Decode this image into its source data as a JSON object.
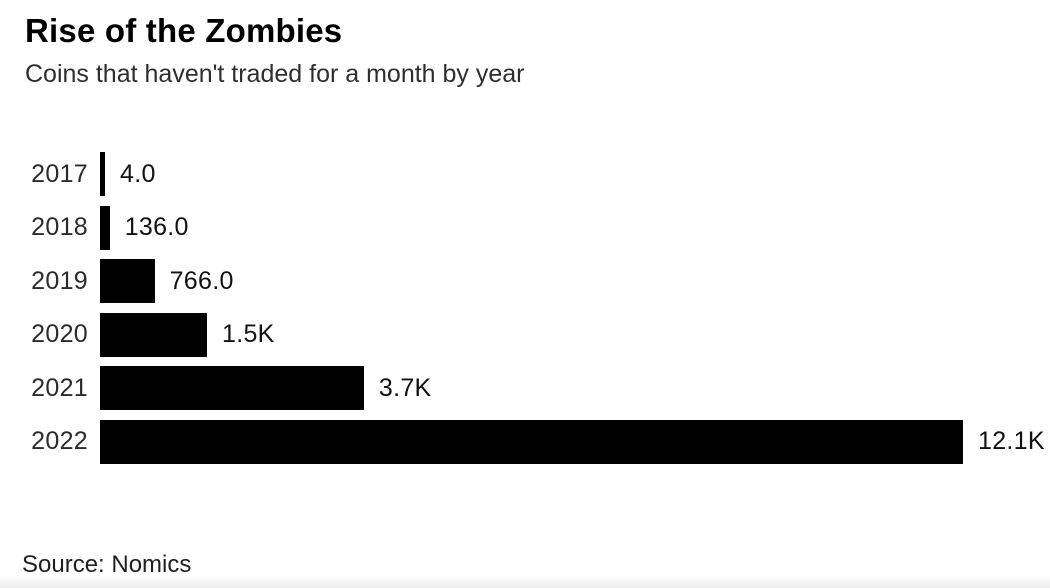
{
  "header": {
    "title": "Rise of the Zombies",
    "subtitle": "Coins that haven't traded for a month by year"
  },
  "source": {
    "label": "Source: Nomics"
  },
  "colors": {
    "bar": "#000000",
    "title": "#000000",
    "subtitle": "#2e2e2e",
    "label": "#2b2b2b",
    "value": "#111111"
  },
  "chart_data": {
    "type": "bar",
    "orientation": "horizontal",
    "title": "Rise of the Zombies",
    "subtitle": "Coins that haven't traded for a month by year",
    "categories": [
      "2017",
      "2018",
      "2019",
      "2020",
      "2021",
      "2022"
    ],
    "values": [
      4,
      136,
      766,
      1500,
      3700,
      12100
    ],
    "value_labels": [
      "4.0",
      "136.0",
      "766.0",
      "1.5K",
      "3.7K",
      "12.1K"
    ],
    "xlabel": "",
    "ylabel": "",
    "xlim": [
      0,
      12100
    ],
    "grid": false,
    "legend": false,
    "bar_color": "#000000",
    "source": "Source: Nomics"
  }
}
